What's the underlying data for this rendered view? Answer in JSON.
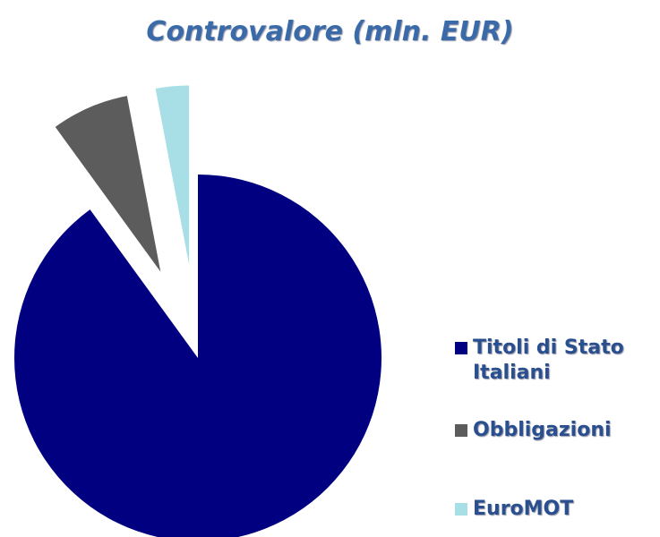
{
  "chart_data": {
    "type": "pie",
    "title": "Controvalore (mln. EUR)",
    "categories": [
      "Titoli di Stato Italiani",
      "Obbligazioni",
      "EuroMOT"
    ],
    "values": [
      90,
      7,
      3
    ],
    "colors": [
      "#000080",
      "#5c5c5c",
      "#a8dfe6"
    ],
    "legend": "right"
  }
}
